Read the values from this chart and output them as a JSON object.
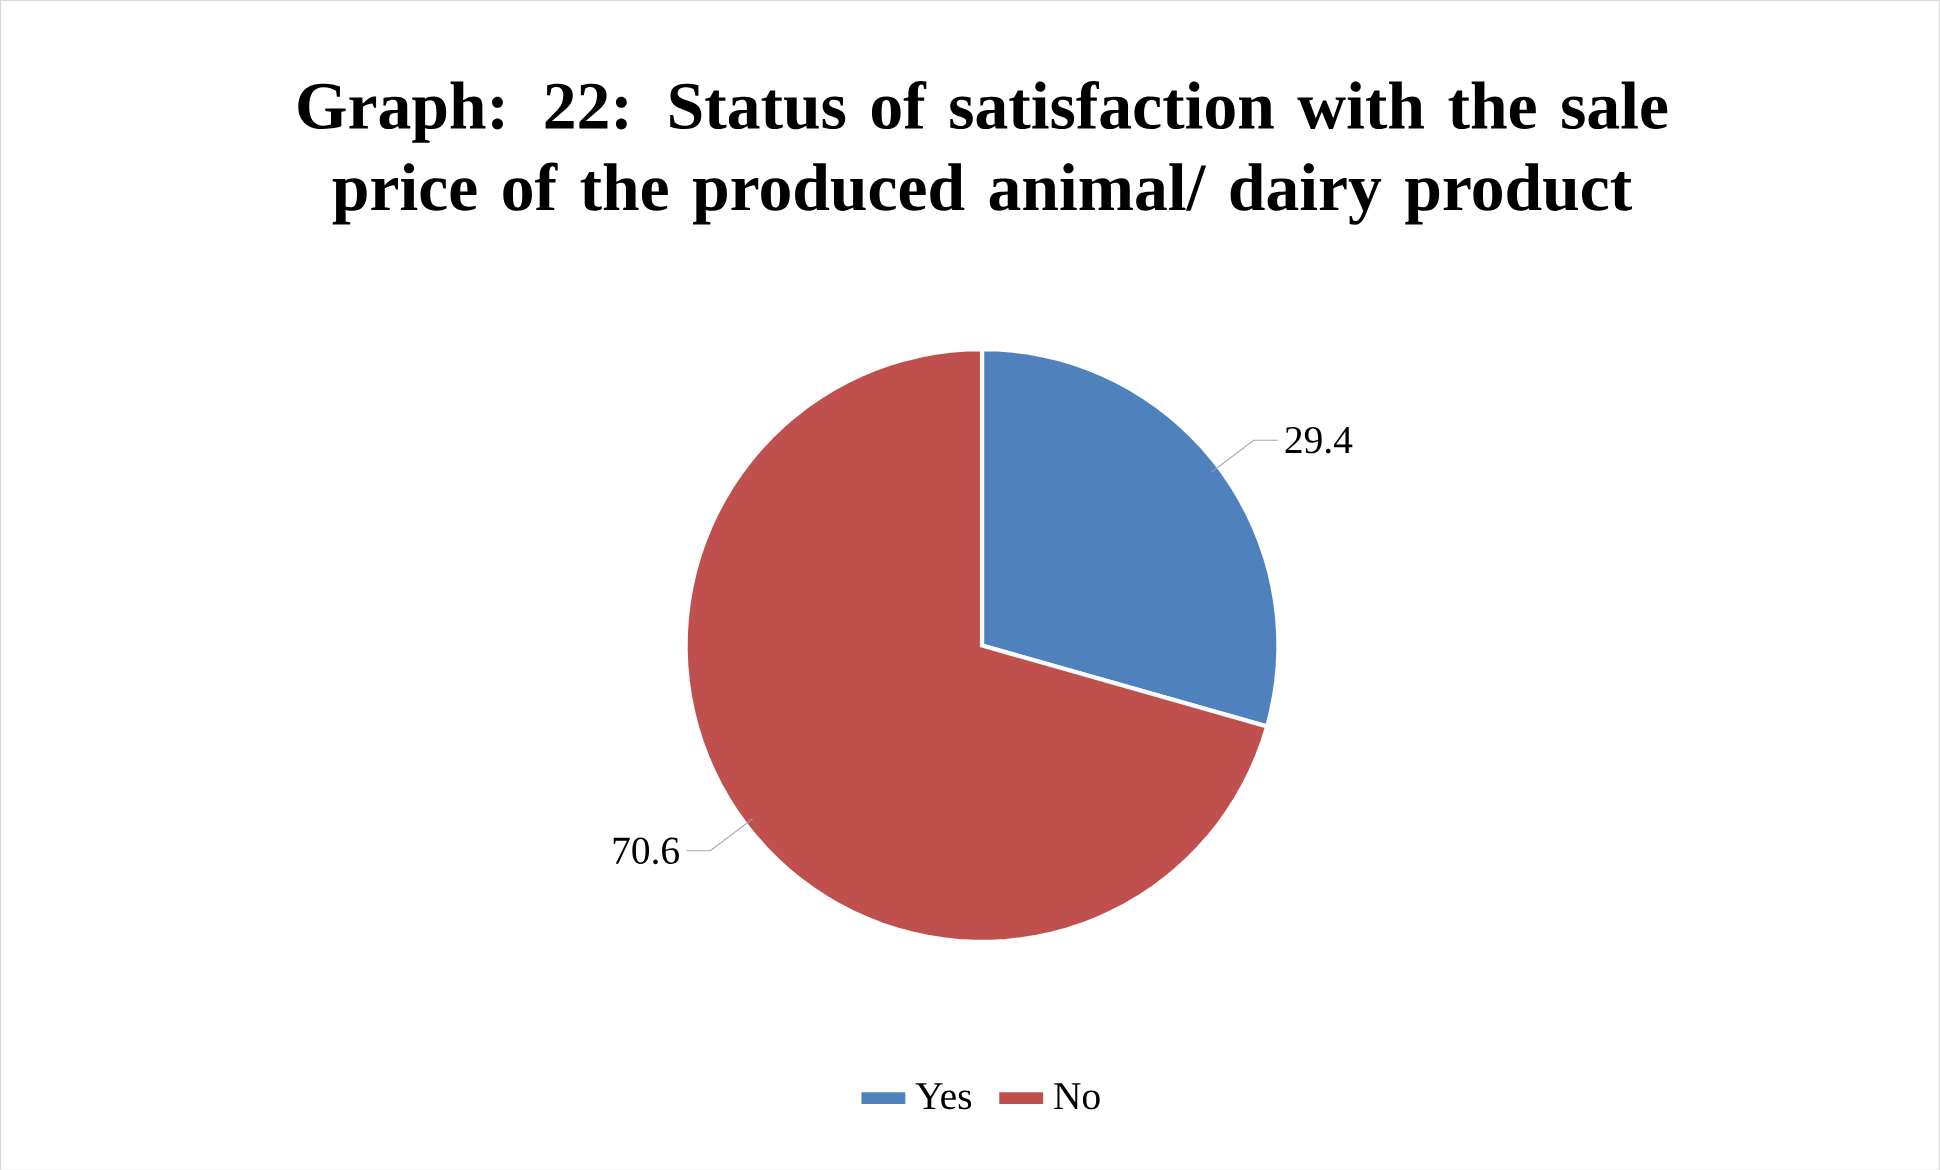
{
  "chart_data": {
    "type": "pie",
    "title": "Graph: 22: Status of satisfaction with the sale price of the produced animal/ dairy product",
    "categories": [
      "Yes",
      "No"
    ],
    "values": [
      29.4,
      70.6
    ],
    "colors": [
      "#4f81bd",
      "#c0504d"
    ],
    "data_labels": true,
    "legend": "bottom"
  }
}
